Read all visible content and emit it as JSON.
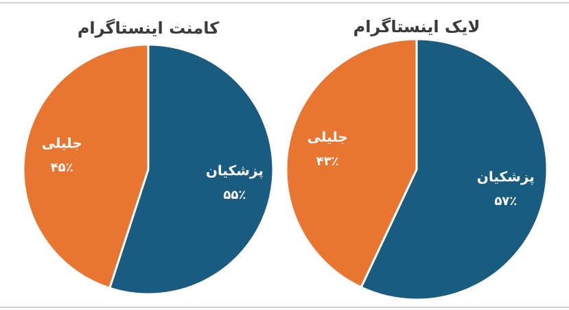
{
  "chart_data": [
    {
      "type": "pie",
      "title": "کامنت اینستاگرام",
      "categories": [
        "پزشکیان",
        "جلیلی"
      ],
      "values": [
        55,
        45
      ],
      "value_labels": [
        "۵۵٪",
        "۴۵٪"
      ],
      "colors": [
        "#1a5c80",
        "#e87530"
      ]
    },
    {
      "type": "pie",
      "title": "لایک اینستاگرام",
      "categories": [
        "پزشکیان",
        "جلیلی"
      ],
      "values": [
        57,
        43
      ],
      "value_labels": [
        "۵۷٪",
        "۴۳٪"
      ],
      "colors": [
        "#1a5c80",
        "#e87530"
      ]
    }
  ]
}
